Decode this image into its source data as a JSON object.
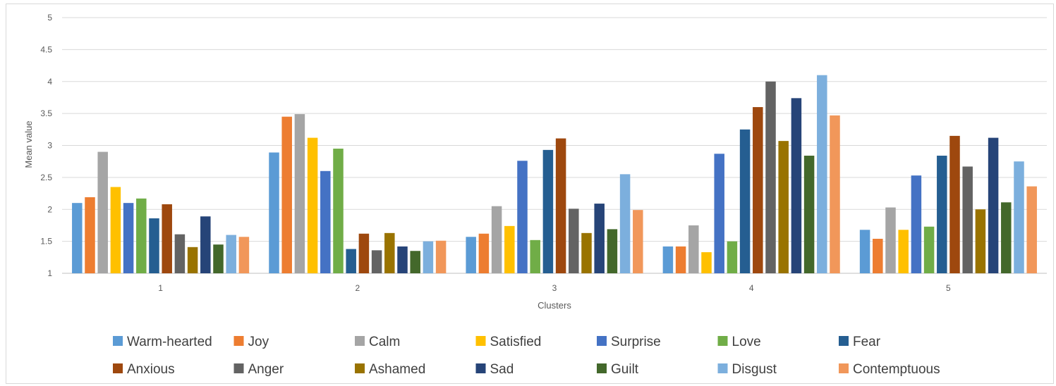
{
  "chart_data": {
    "type": "bar",
    "title": "",
    "xlabel": "Clusters",
    "ylabel": "Mean value",
    "ylim": [
      1,
      5
    ],
    "yticks": [
      "1",
      "1.5",
      "2",
      "2.5",
      "3",
      "3.5",
      "4",
      "4.5",
      "5"
    ],
    "grid": true,
    "legend_position": "bottom",
    "categories": [
      "1",
      "2",
      "3",
      "4",
      "5"
    ],
    "series": [
      {
        "name": "Warm-hearted",
        "color": "#5B9BD5",
        "values": [
          2.1,
          2.89,
          1.57,
          1.42,
          1.68
        ]
      },
      {
        "name": "Joy",
        "color": "#ED7D31",
        "values": [
          2.19,
          3.45,
          1.62,
          1.42,
          1.54
        ]
      },
      {
        "name": "Calm",
        "color": "#A5A5A5",
        "values": [
          2.9,
          3.49,
          2.05,
          1.75,
          2.03
        ]
      },
      {
        "name": "Satisfied",
        "color": "#FFC000",
        "values": [
          2.35,
          3.12,
          1.74,
          1.33,
          1.68
        ]
      },
      {
        "name": "Surprise",
        "color": "#4472C4",
        "values": [
          2.1,
          2.6,
          2.76,
          2.87,
          2.53
        ]
      },
      {
        "name": "Love",
        "color": "#70AD47",
        "values": [
          2.17,
          2.95,
          1.52,
          1.5,
          1.73
        ]
      },
      {
        "name": "Fear",
        "color": "#255E91",
        "values": [
          1.86,
          1.38,
          2.93,
          3.25,
          2.84
        ]
      },
      {
        "name": "Anxious",
        "color": "#9E480E",
        "values": [
          2.08,
          1.62,
          3.11,
          3.6,
          3.15
        ]
      },
      {
        "name": "Anger",
        "color": "#636363",
        "values": [
          1.61,
          1.36,
          2.01,
          4.0,
          2.67
        ]
      },
      {
        "name": "Ashamed",
        "color": "#997300",
        "values": [
          1.41,
          1.63,
          1.63,
          3.07,
          2.0
        ]
      },
      {
        "name": "Sad",
        "color": "#264478",
        "values": [
          1.89,
          1.42,
          2.09,
          3.74,
          3.12
        ]
      },
      {
        "name": "Guilt",
        "color": "#43682B",
        "values": [
          1.45,
          1.35,
          1.69,
          2.84,
          2.11
        ]
      },
      {
        "name": "Disgust",
        "color": "#7CAFDD",
        "values": [
          1.6,
          1.5,
          2.55,
          4.1,
          2.75
        ]
      },
      {
        "name": "Contemptuous",
        "color": "#F1975A",
        "values": [
          1.57,
          1.51,
          1.99,
          3.47,
          2.36
        ]
      }
    ]
  },
  "colors": {
    "gridline": "#d9d9d9",
    "axis": "#bfbfbf",
    "text": "#595959"
  }
}
